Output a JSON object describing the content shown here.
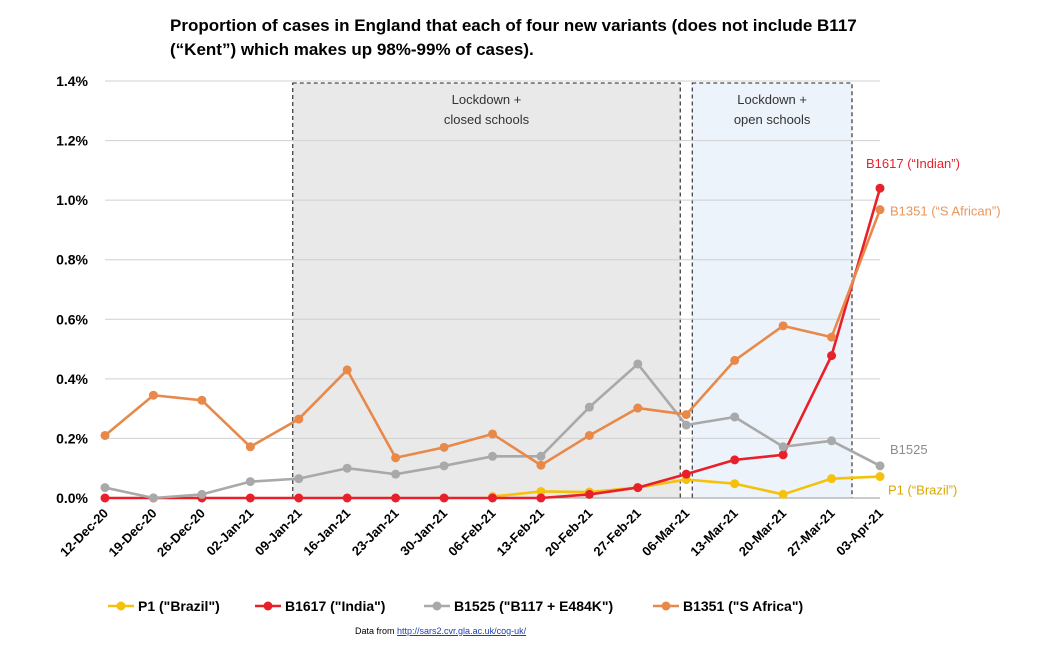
{
  "chart_data": {
    "type": "line",
    "title_lines": [
      "Proportion of cases in England that each of four new variants (does not include B117",
      "(“Kent”) which makes up 98%-99% of cases)."
    ],
    "categories": [
      "12-Dec-20",
      "19-Dec-20",
      "26-Dec-20",
      "02-Jan-21",
      "09-Jan-21",
      "16-Jan-21",
      "23-Jan-21",
      "30-Jan-21",
      "06-Feb-21",
      "13-Feb-21",
      "20-Feb-21",
      "27-Feb-21",
      "06-Mar-21",
      "13-Mar-21",
      "20-Mar-21",
      "27-Mar-21",
      "03-Apr-21"
    ],
    "ylim": [
      0,
      1.4
    ],
    "yticks": [
      0,
      0.2,
      0.4,
      0.6,
      0.8,
      1.0,
      1.2,
      1.4
    ],
    "ytick_labels": [
      "0.0%",
      "0.2%",
      "0.4%",
      "0.6%",
      "0.8%",
      "1.0%",
      "1.2%",
      "1.4%"
    ],
    "grid": "horizontal",
    "regions": [
      {
        "label_lines": [
          "Lockdown +",
          "closed schools"
        ],
        "from": "09-Jan-21",
        "to": "06-Mar-21",
        "fill": "#e9e9e9"
      },
      {
        "label_lines": [
          "Lockdown +",
          "open schools"
        ],
        "from": "06-Mar-21",
        "to": "03-Apr-21",
        "fill": "#edf3fb"
      }
    ],
    "series": [
      {
        "name": "P1 (\"Brazil\")",
        "end_label": "P1 (“Brazil”)",
        "color": "#f4c20d",
        "end_color": "#d9a800",
        "values": [
          null,
          null,
          null,
          null,
          null,
          null,
          null,
          null,
          0.005,
          0.022,
          0.02,
          0.035,
          0.062,
          0.048,
          0.012,
          0.065,
          0.072
        ]
      },
      {
        "name": "B1617 (\"India\")",
        "end_label": "B1617 (“Indian”)",
        "color": "#e8202a",
        "end_color": "#e8202a",
        "values": [
          0,
          0,
          0,
          0,
          0,
          0,
          0,
          0,
          0,
          0,
          0.012,
          0.035,
          0.08,
          0.128,
          0.145,
          0.478,
          1.04
        ]
      },
      {
        "name": "B1525 (\"B117 + E484K\")",
        "end_label": "B1525",
        "color": "#a9a9a9",
        "end_color": "#8c8c8c",
        "values": [
          0.035,
          0,
          0.012,
          0.055,
          0.065,
          0.1,
          0.08,
          0.108,
          0.14,
          0.14,
          0.305,
          0.45,
          0.245,
          0.272,
          0.172,
          0.192,
          0.108
        ]
      },
      {
        "name": "B1351 (\"S Africa\")",
        "end_label": "B1351 (“S African”)",
        "color": "#e8894a",
        "end_color": "#e8955c",
        "values": [
          0.21,
          0.345,
          0.328,
          0.172,
          0.265,
          0.43,
          0.135,
          0.17,
          0.215,
          0.11,
          0.21,
          0.302,
          0.28,
          0.462,
          0.578,
          0.54,
          0.968
        ]
      }
    ],
    "legend_position": "bottom",
    "source_prefix": "Data from",
    "source_link": "http://sars2.cvr.gla.ac.uk/cog-uk/"
  }
}
